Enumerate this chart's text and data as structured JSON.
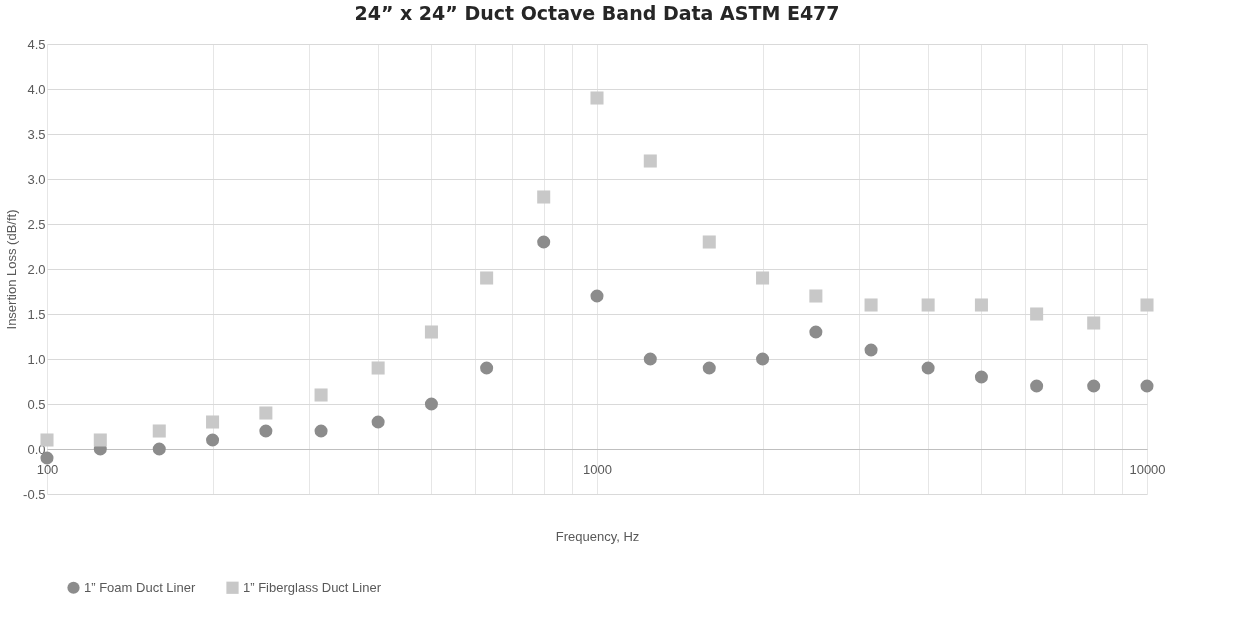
{
  "chart_data": {
    "type": "scatter",
    "title": "24” x 24” Duct Octave Band Data ASTM E477",
    "xlabel": "Frequency, Hz",
    "ylabel": "Insertion Loss (dB/ft)",
    "x": [
      100,
      125,
      160,
      200,
      250,
      315,
      400,
      500,
      630,
      800,
      1000,
      1250,
      1600,
      2000,
      2500,
      3150,
      4000,
      5000,
      6300,
      8000,
      10000
    ],
    "series": [
      {
        "name": "1” Foam Duct Liner",
        "color": "#8c8c8c",
        "marker": "circle",
        "values": [
          -0.1,
          0,
          0,
          0.1,
          0.2,
          0.2,
          0.3,
          0.5,
          0.9,
          2.3,
          1.7,
          1.0,
          0.9,
          1.0,
          1.3,
          1.1,
          0.9,
          0.8,
          0.7,
          0.7,
          0.7
        ]
      },
      {
        "name": "1” Fiberglass Duct Liner",
        "color": "#c8c8c8",
        "marker": "square",
        "values": [
          0.1,
          0.1,
          0.2,
          0.3,
          0.4,
          0.6,
          0.9,
          1.3,
          1.9,
          2.8,
          3.9,
          3.2,
          2.3,
          1.9,
          1.7,
          1.6,
          1.6,
          1.6,
          1.5,
          1.4,
          1.6
        ]
      }
    ],
    "log": "x",
    "xlim": [
      100,
      10000
    ],
    "xticks": [
      100,
      {
        "value": 200,
        "label": null
      },
      {
        "value": 300,
        "label": null
      },
      {
        "value": 400,
        "label": null
      },
      {
        "value": 500,
        "label": null
      },
      {
        "value": 600,
        "label": null
      },
      {
        "value": 700,
        "label": null
      },
      {
        "value": 800,
        "label": null
      },
      {
        "value": 900,
        "label": null
      },
      1000,
      {
        "value": 2000,
        "label": null
      },
      {
        "value": 3000,
        "label": null
      },
      {
        "value": 4000,
        "label": null
      },
      {
        "value": 5000,
        "label": null
      },
      {
        "value": 6000,
        "label": null
      },
      {
        "value": 7000,
        "label": null
      },
      {
        "value": 8000,
        "label": null
      },
      {
        "value": 9000,
        "label": null
      },
      10000
    ],
    "ylim": [
      -0.5,
      4.5
    ],
    "yticks": [
      {
        "value": -0.5,
        "label": "-0.5"
      },
      {
        "value": 0,
        "label": "0.0"
      },
      {
        "value": 0.5,
        "label": "0.5"
      },
      {
        "value": 1,
        "label": "1.0"
      },
      {
        "value": 1.5,
        "label": "1.5"
      },
      {
        "value": 2,
        "label": "2.0"
      },
      {
        "value": 2.5,
        "label": "2.5"
      },
      {
        "value": 3,
        "label": "3.0"
      },
      {
        "value": 3.5,
        "label": "3.5"
      },
      {
        "value": 4,
        "label": "4.0"
      },
      {
        "value": 4.5,
        "label": "4.5"
      }
    ],
    "grid": true,
    "legend": "bottom"
  }
}
